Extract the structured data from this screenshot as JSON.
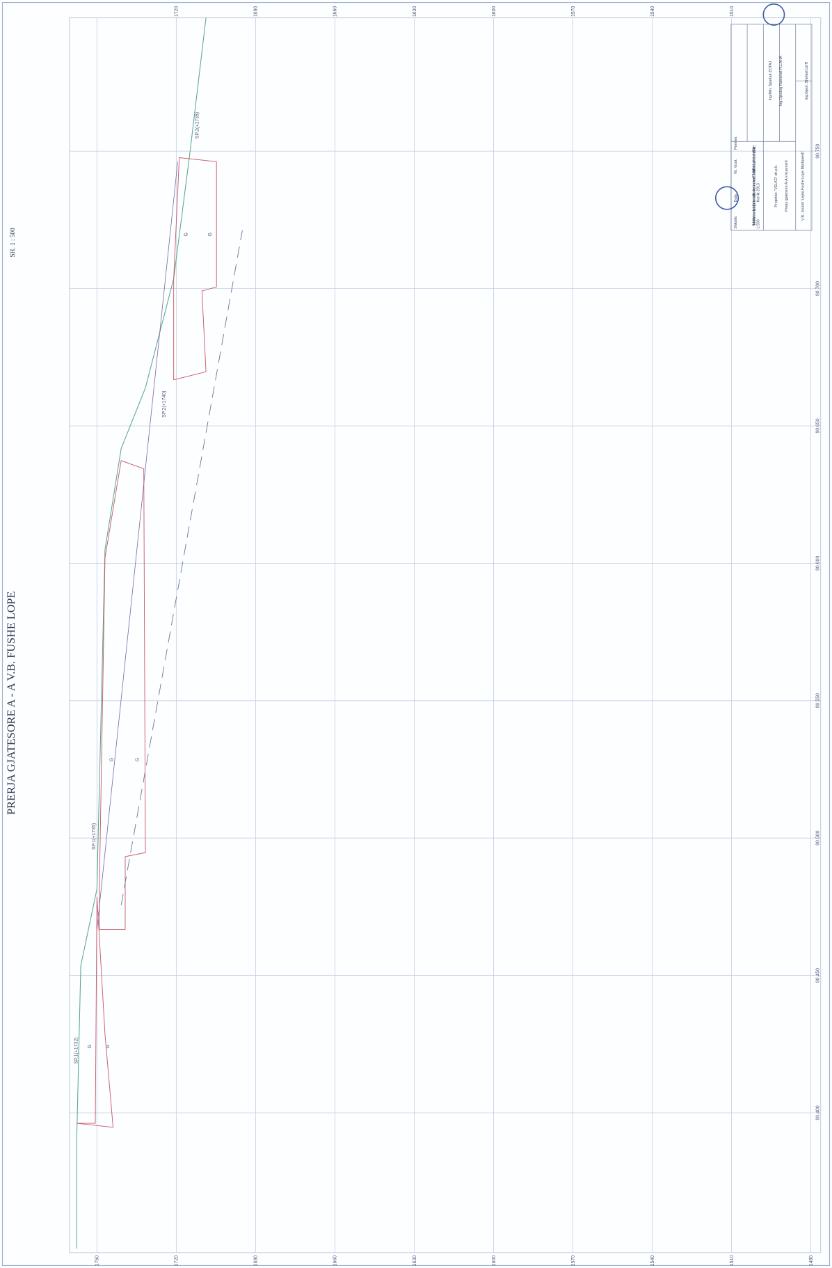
{
  "header": {
    "title": "PRERJA    GJATESORE    A - A    V.B.  FUSHE  LOPE",
    "scale": "SH. 1 : 500"
  },
  "elevations": [
    1750,
    1720,
    1690,
    1660,
    1630,
    1600,
    1570,
    1540,
    1510,
    1480
  ],
  "stations": [
    "90.400",
    "90.450",
    "90.500",
    "90.550",
    "90.600",
    "90.650",
    "90.700",
    "90.750"
  ],
  "annotations": [
    "SP.1(+1732)",
    "SP.1(+1735)",
    "SP.2(+1740)",
    "SP.2(+1735)",
    "G",
    "G",
    "G",
    "G",
    "G",
    "G"
  ],
  "title_block": {
    "lines": [
      "V.B.: kromit  'Lejmi-Fushe Lope Martanesh'",
      "Prerja gjatesore A-A e kuarcerit",
      "Projektoi: 'VELKO' sh.p.k.",
      "Ing.Min. Spartak ZOTAJ",
      "Ing.Gjeolog Raimond PLLAHA",
      "Ing.Gjeol. Shefqet LETI"
    ],
    "notes": "Studimi teknik - ekonomik per shfrytezimin e mineralit te kromit ne zonen minerare 'LEJMI' objekti 'Fushe Lope' Martanesh, rrethi Bulqize",
    "fields": [
      "Shkalla",
      "Data",
      "Nr. Vizat.",
      "Permes",
      "1:500",
      "Korrik 2013"
    ]
  }
}
